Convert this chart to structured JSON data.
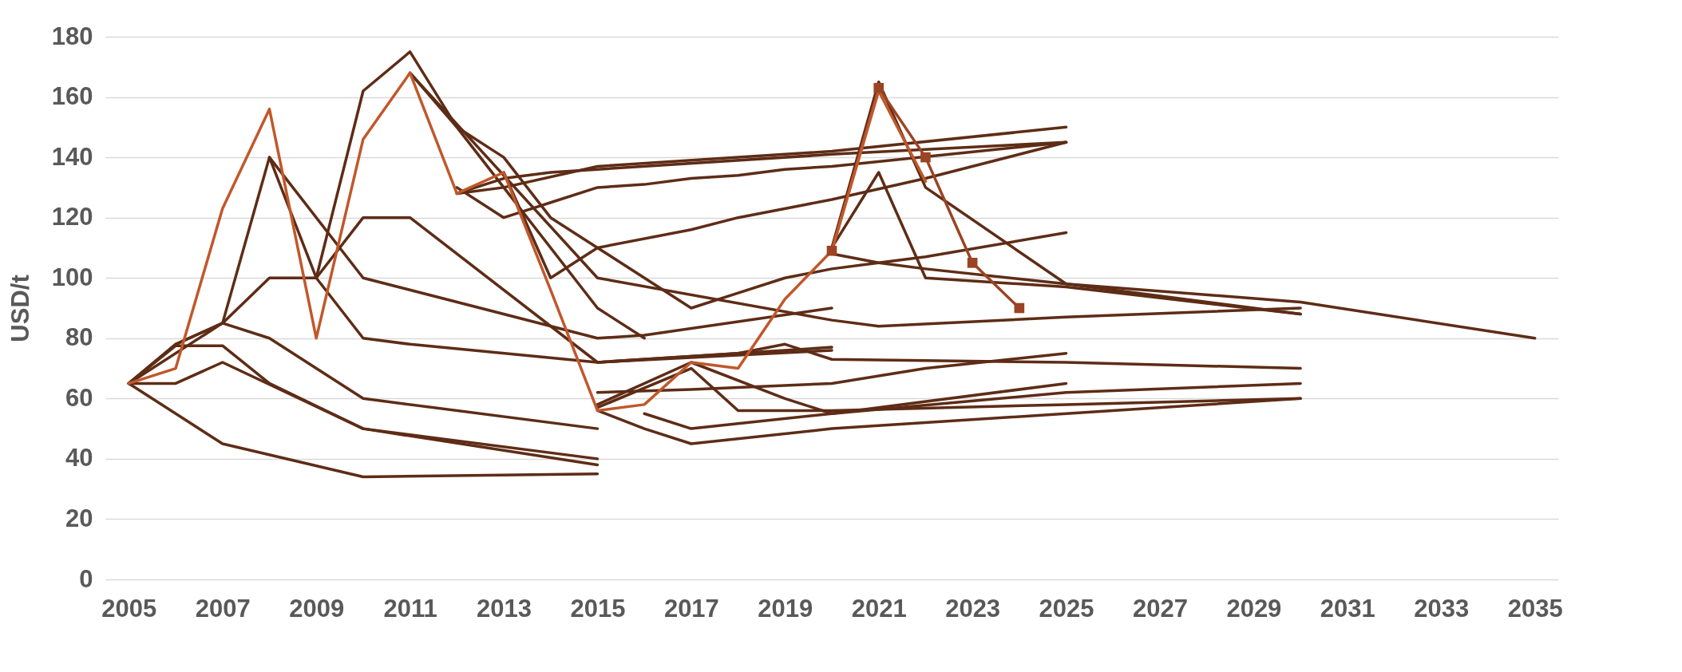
{
  "chart_data": {
    "type": "line",
    "ylabel": "USD/t",
    "xlim": [
      2004.5,
      2035.5
    ],
    "xticks": [
      2005,
      2007,
      2009,
      2011,
      2013,
      2015,
      2017,
      2019,
      2021,
      2023,
      2025,
      2027,
      2029,
      2031,
      2033,
      2035
    ],
    "ylim": [
      0,
      180
    ],
    "yticks": [
      0,
      20,
      40,
      60,
      80,
      100,
      120,
      140,
      160,
      180
    ],
    "grid": "y",
    "line_style": "solid",
    "series": [
      {
        "color": "#5e2c16",
        "x": [
          2005,
          2006,
          2007,
          2008,
          2009,
          2010,
          2011,
          2015,
          2020
        ],
        "values": [
          65,
          78,
          85,
          140,
          100,
          80,
          78,
          72,
          77
        ]
      },
      {
        "color": "#5e2c16",
        "x": [
          2005,
          2007,
          2008,
          2009,
          2010,
          2011,
          2015,
          2020
        ],
        "values": [
          65,
          85,
          100,
          100,
          120,
          120,
          72,
          76
        ]
      },
      {
        "color": "#5e2c16",
        "x": [
          2008,
          2010,
          2015,
          2016,
          2020
        ],
        "values": [
          140,
          100,
          80,
          81,
          90
        ]
      },
      {
        "color": "#5e2c16",
        "x": [
          2009,
          2010,
          2011,
          2012,
          2013,
          2015,
          2016
        ],
        "values": [
          100,
          162,
          175,
          150,
          130,
          90,
          80
        ]
      },
      {
        "color": "#5e2c16",
        "x": [
          2011,
          2012,
          2013,
          2014,
          2015,
          2017,
          2018,
          2019,
          2020,
          2021,
          2022,
          2025
        ],
        "values": [
          168,
          150,
          140,
          120,
          110,
          90,
          95,
          100,
          103,
          105,
          107,
          115
        ]
      },
      {
        "color": "#5e2c16",
        "x": [
          2012,
          2013,
          2015,
          2020,
          2025
        ],
        "values": [
          128,
          130,
          137,
          142,
          150
        ]
      },
      {
        "color": "#5e2c16",
        "x": [
          2012,
          2013,
          2014,
          2015,
          2020,
          2025
        ],
        "values": [
          128,
          133,
          135,
          136,
          141,
          145
        ]
      },
      {
        "color": "#5e2c16",
        "x": [
          2012,
          2013,
          2014,
          2015,
          2016,
          2017,
          2018,
          2019,
          2020,
          2025
        ],
        "values": [
          130,
          120,
          125,
          130,
          131,
          133,
          134,
          136,
          137,
          145
        ]
      },
      {
        "color": "#5e2c16",
        "x": [
          2013,
          2014,
          2015,
          2017,
          2018,
          2020,
          2022,
          2025
        ],
        "values": [
          135,
          100,
          110,
          116,
          120,
          126,
          133,
          145
        ]
      },
      {
        "color": "#5e2c16",
        "x": [
          2011,
          2015,
          2020,
          2021,
          2025,
          2030
        ],
        "values": [
          168,
          100,
          86,
          84,
          87,
          90
        ]
      },
      {
        "color": "#5e2c16",
        "x": [
          2020,
          2021,
          2022,
          2025,
          2030,
          2035
        ],
        "values": [
          108,
          105,
          103,
          98,
          92,
          80
        ]
      },
      {
        "color": "#5e2c16",
        "x": [
          2020,
          2021,
          2022,
          2025,
          2030
        ],
        "values": [
          110,
          165,
          130,
          98,
          88
        ]
      },
      {
        "color": "#5e2c16",
        "x": [
          2020,
          2021,
          2022,
          2025,
          2030
        ],
        "values": [
          110,
          135,
          100,
          97,
          88
        ]
      },
      {
        "color": "#5e2c16",
        "x": [
          2005,
          2006,
          2007,
          2008,
          2010,
          2015
        ],
        "values": [
          65,
          77.5,
          77.5,
          65,
          50,
          38
        ]
      },
      {
        "color": "#5e2c16",
        "x": [
          2005,
          2006,
          2007,
          2010,
          2015
        ],
        "values": [
          65,
          65,
          72,
          50,
          40
        ]
      },
      {
        "color": "#5e2c16",
        "x": [
          2005,
          2006,
          2007,
          2008,
          2010,
          2015
        ],
        "values": [
          65,
          78,
          85,
          80,
          60,
          50
        ]
      },
      {
        "color": "#5e2c16",
        "x": [
          2005,
          2007,
          2010,
          2015
        ],
        "values": [
          65,
          45,
          34,
          35
        ]
      },
      {
        "color": "#5e2c16",
        "x": [
          2015,
          2016,
          2017,
          2020,
          2025,
          2030
        ],
        "values": [
          56,
          50,
          45,
          50,
          55,
          60
        ]
      },
      {
        "color": "#5e2c16",
        "x": [
          2015,
          2017,
          2018,
          2020,
          2025,
          2030
        ],
        "values": [
          57,
          70,
          56,
          56,
          58,
          60
        ]
      },
      {
        "color": "#5e2c16",
        "x": [
          2015,
          2017,
          2020,
          2022,
          2025
        ],
        "values": [
          62,
          63,
          65,
          70,
          75
        ]
      },
      {
        "color": "#5e2c16",
        "x": [
          2015,
          2018,
          2019,
          2020,
          2025,
          2030
        ],
        "values": [
          72,
          75,
          78,
          73,
          72,
          70
        ]
      },
      {
        "color": "#5e2c16",
        "x": [
          2015,
          2017,
          2019,
          2020,
          2025,
          2030
        ],
        "values": [
          58,
          72,
          60,
          55,
          62,
          65
        ]
      },
      {
        "color": "#5e2c16",
        "x": [
          2016,
          2017,
          2020,
          2025
        ],
        "values": [
          55,
          50,
          55,
          65
        ]
      },
      {
        "color": "#9b4424",
        "marker": "square",
        "x": [
          2020,
          2021,
          2022,
          2023,
          2024
        ],
        "values": [
          109,
          163,
          140,
          105,
          90
        ]
      },
      {
        "color": "#c0582b",
        "x": [
          2005,
          2006,
          2007,
          2008,
          2009,
          2010,
          2011,
          2012,
          2013,
          2014,
          2015,
          2016,
          2017,
          2018,
          2019,
          2020,
          2021,
          2022
        ],
        "values": [
          65,
          70,
          123,
          156,
          80,
          146,
          168,
          128,
          135,
          96,
          56,
          58,
          72,
          70,
          93,
          109,
          162,
          132
        ]
      }
    ]
  }
}
